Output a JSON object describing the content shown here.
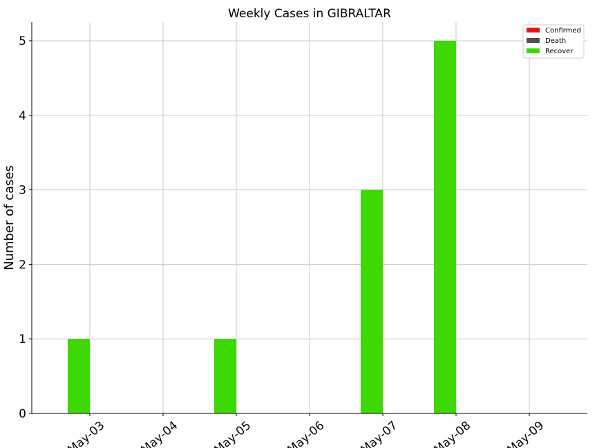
{
  "chart_data": {
    "type": "bar",
    "title": "Weekly Cases in GIBRALTAR",
    "xlabel": "",
    "ylabel": "Number of cases",
    "categories": [
      "May-03",
      "May-04",
      "May-05",
      "May-06",
      "May-07",
      "May-08",
      "May-09"
    ],
    "x_ticks": [
      "May-03",
      "May-04",
      "May-05",
      "May-06",
      "May-07",
      "May-08",
      "May-09"
    ],
    "y_ticks": [
      "0",
      "1",
      "2",
      "3",
      "4",
      "5"
    ],
    "ylim": [
      0,
      5.25
    ],
    "grid": true,
    "legend_position": "top-right",
    "series": [
      {
        "name": "Confirmed",
        "color": "#ee1111",
        "values": [
          0,
          0,
          0,
          0,
          0,
          0,
          0
        ]
      },
      {
        "name": "Death",
        "color": "#505050",
        "values": [
          0,
          0,
          0,
          0,
          0,
          0,
          0
        ]
      },
      {
        "name": "Recover",
        "color": "#3ed802",
        "values": [
          1,
          0,
          1,
          0,
          3,
          5,
          0
        ]
      }
    ]
  }
}
